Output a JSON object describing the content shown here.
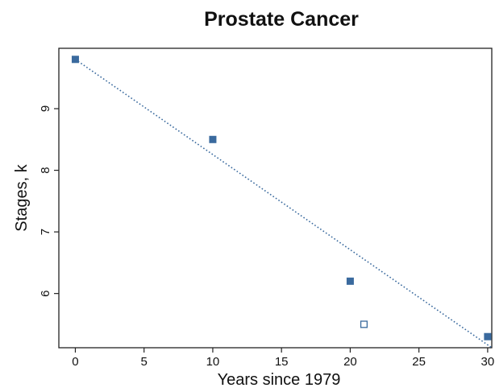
{
  "chart_data": {
    "type": "scatter",
    "title": "Prostate Cancer",
    "xlabel": "Years since 1979",
    "ylabel": "Stages, k",
    "xlim": [
      -1.2,
      30.3
    ],
    "ylim": [
      5.12,
      9.98
    ],
    "xticks": [
      0,
      5,
      10,
      15,
      20,
      25,
      30
    ],
    "yticks": [
      6,
      7,
      8,
      9
    ],
    "grid": false,
    "legend": false,
    "series": [
      {
        "marker": "filled-square",
        "color": "#3a6a9e",
        "points": [
          {
            "x": 0,
            "y": 9.8
          },
          {
            "x": 10,
            "y": 8.5
          },
          {
            "x": 20,
            "y": 6.2
          },
          {
            "x": 30,
            "y": 5.3
          }
        ]
      },
      {
        "marker": "open-square",
        "color": "#3a6a9e",
        "points": [
          {
            "x": 21,
            "y": 5.5
          }
        ]
      }
    ],
    "trendline": {
      "style": "dotted",
      "color": "#3a6a9e",
      "from": {
        "x": 0,
        "y": 9.8
      },
      "to": {
        "x": 30.3,
        "y": 5.12
      }
    }
  }
}
